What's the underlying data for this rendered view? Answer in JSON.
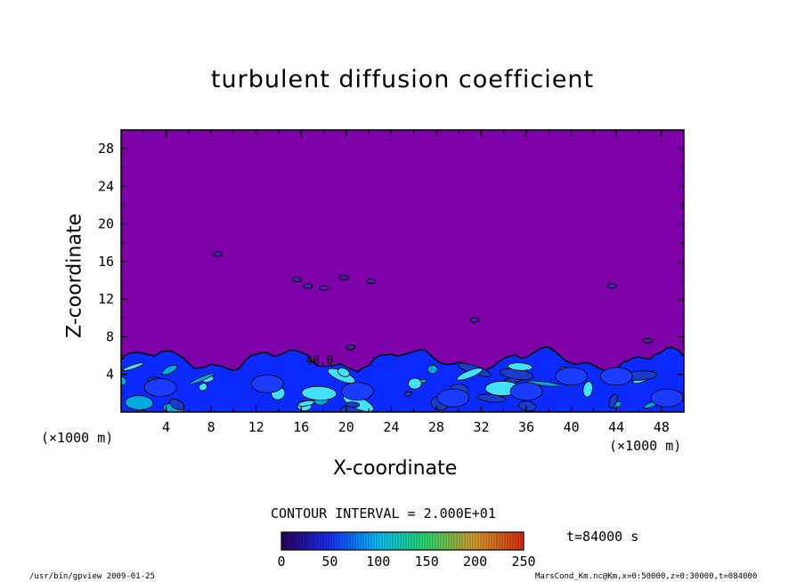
{
  "chart_data": {
    "type": "heatmap",
    "title": "turbulent diffusion coefficient",
    "xlabel": "X-coordinate",
    "ylabel": "Z-coordinate",
    "x_unit_label": "(×1000 m)",
    "y_unit_label": "(×1000 m)",
    "xlim": [
      0,
      50
    ],
    "ylim": [
      0,
      30
    ],
    "x_ticks": [
      4,
      8,
      12,
      16,
      20,
      24,
      28,
      32,
      36,
      40,
      44,
      48
    ],
    "y_ticks": [
      4,
      8,
      12,
      16,
      20,
      24,
      28
    ],
    "contour_interval_text": "CONTOUR INTERVAL = 2.000E+01",
    "contour_label": "40.0",
    "colorbar": {
      "ticks": [
        0,
        50,
        100,
        150,
        200,
        250
      ],
      "range": [
        0,
        250
      ]
    },
    "background_value_color": "#7d00a8",
    "turbulent_layer_top": 6,
    "boundary_layer_colors": [
      "#0a2aff",
      "#00a8e0",
      "#43e0ff",
      "#1a3cc8"
    ],
    "isolated_patches": [
      {
        "x": 8.6,
        "z": 16.8
      },
      {
        "x": 15.6,
        "z": 14.1
      },
      {
        "x": 16.6,
        "z": 13.4
      },
      {
        "x": 18.0,
        "z": 13.2
      },
      {
        "x": 19.8,
        "z": 14.3
      },
      {
        "x": 22.2,
        "z": 13.9
      },
      {
        "x": 31.4,
        "z": 9.8
      },
      {
        "x": 43.6,
        "z": 13.4
      },
      {
        "x": 46.8,
        "z": 7.6
      },
      {
        "x": 20.4,
        "z": 6.9
      }
    ]
  },
  "time_label": "t=84000  s",
  "footer_left": "/usr/bin/gpview  2009-01-25",
  "footer_right": "MarsCond_Km.nc@Km,x=0:50000,z=0:30000,t=084000"
}
